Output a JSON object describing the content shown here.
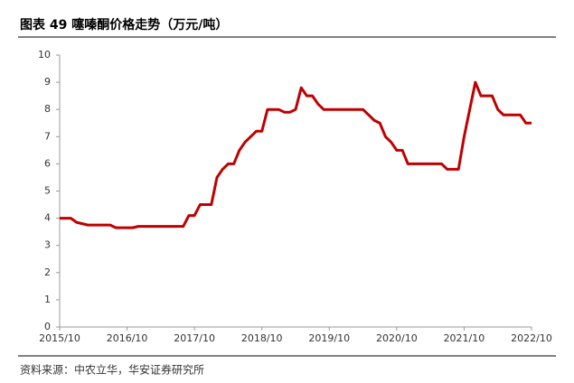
{
  "chart_data": {
    "type": "line",
    "title": "图表 49 噻嗪酮价格走势（万元/吨）",
    "source": "资料来源：中农立华，华安证券研究所",
    "x": [
      "2015/10",
      "2015/11",
      "2015/12",
      "2016/01",
      "2016/02",
      "2016/03",
      "2016/04",
      "2016/05",
      "2016/06",
      "2016/07",
      "2016/08",
      "2016/09",
      "2016/10",
      "2016/11",
      "2016/12",
      "2017/01",
      "2017/02",
      "2017/03",
      "2017/04",
      "2017/05",
      "2017/06",
      "2017/07",
      "2017/08",
      "2017/09",
      "2017/10",
      "2017/11",
      "2017/12",
      "2018/01",
      "2018/02",
      "2018/03",
      "2018/04",
      "2018/05",
      "2018/06",
      "2018/07",
      "2018/08",
      "2018/09",
      "2018/10",
      "2018/11",
      "2018/12",
      "2019/01",
      "2019/02",
      "2019/03",
      "2019/04",
      "2019/05",
      "2019/06",
      "2019/07",
      "2019/08",
      "2019/09",
      "2019/10",
      "2019/11",
      "2019/12",
      "2020/01",
      "2020/02",
      "2020/03",
      "2020/04",
      "2020/05",
      "2020/06",
      "2020/07",
      "2020/08",
      "2020/09",
      "2020/10",
      "2020/11",
      "2020/12",
      "2021/01",
      "2021/02",
      "2021/03",
      "2021/04",
      "2021/05",
      "2021/06",
      "2021/07",
      "2021/08",
      "2021/09",
      "2021/10",
      "2021/11",
      "2021/12",
      "2022/01",
      "2022/02",
      "2022/03",
      "2022/04",
      "2022/05",
      "2022/06",
      "2022/07",
      "2022/08",
      "2022/09",
      "2022/10"
    ],
    "series": [
      {
        "name": "噻嗪酮",
        "color": "#c00000",
        "values": [
          4.0,
          4.0,
          4.0,
          3.85,
          3.8,
          3.75,
          3.75,
          3.75,
          3.75,
          3.75,
          3.65,
          3.65,
          3.65,
          3.65,
          3.7,
          3.7,
          3.7,
          3.7,
          3.7,
          3.7,
          3.7,
          3.7,
          3.7,
          4.1,
          4.1,
          4.5,
          4.5,
          4.5,
          5.5,
          5.8,
          6.0,
          6.0,
          6.5,
          6.8,
          7.0,
          7.2,
          7.2,
          8.0,
          8.0,
          8.0,
          7.9,
          7.9,
          8.0,
          8.8,
          8.5,
          8.5,
          8.2,
          8.0,
          8.0,
          8.0,
          8.0,
          8.0,
          8.0,
          8.0,
          8.0,
          7.8,
          7.6,
          7.5,
          7.0,
          6.8,
          6.5,
          6.5,
          6.0,
          6.0,
          6.0,
          6.0,
          6.0,
          6.0,
          6.0,
          5.8,
          5.8,
          5.8,
          7.0,
          8.0,
          9.0,
          8.5,
          8.5,
          8.5,
          8.0,
          7.8,
          7.8,
          7.8,
          7.8,
          7.5,
          7.5
        ]
      }
    ],
    "xticks": [
      "2015/10",
      "2016/10",
      "2017/10",
      "2018/10",
      "2019/10",
      "2020/10",
      "2021/10",
      "2022/10"
    ],
    "ylim": [
      0,
      10
    ],
    "yticks": [
      0,
      1,
      2,
      3,
      4,
      5,
      6,
      7,
      8,
      9,
      10
    ],
    "grid": false
  }
}
